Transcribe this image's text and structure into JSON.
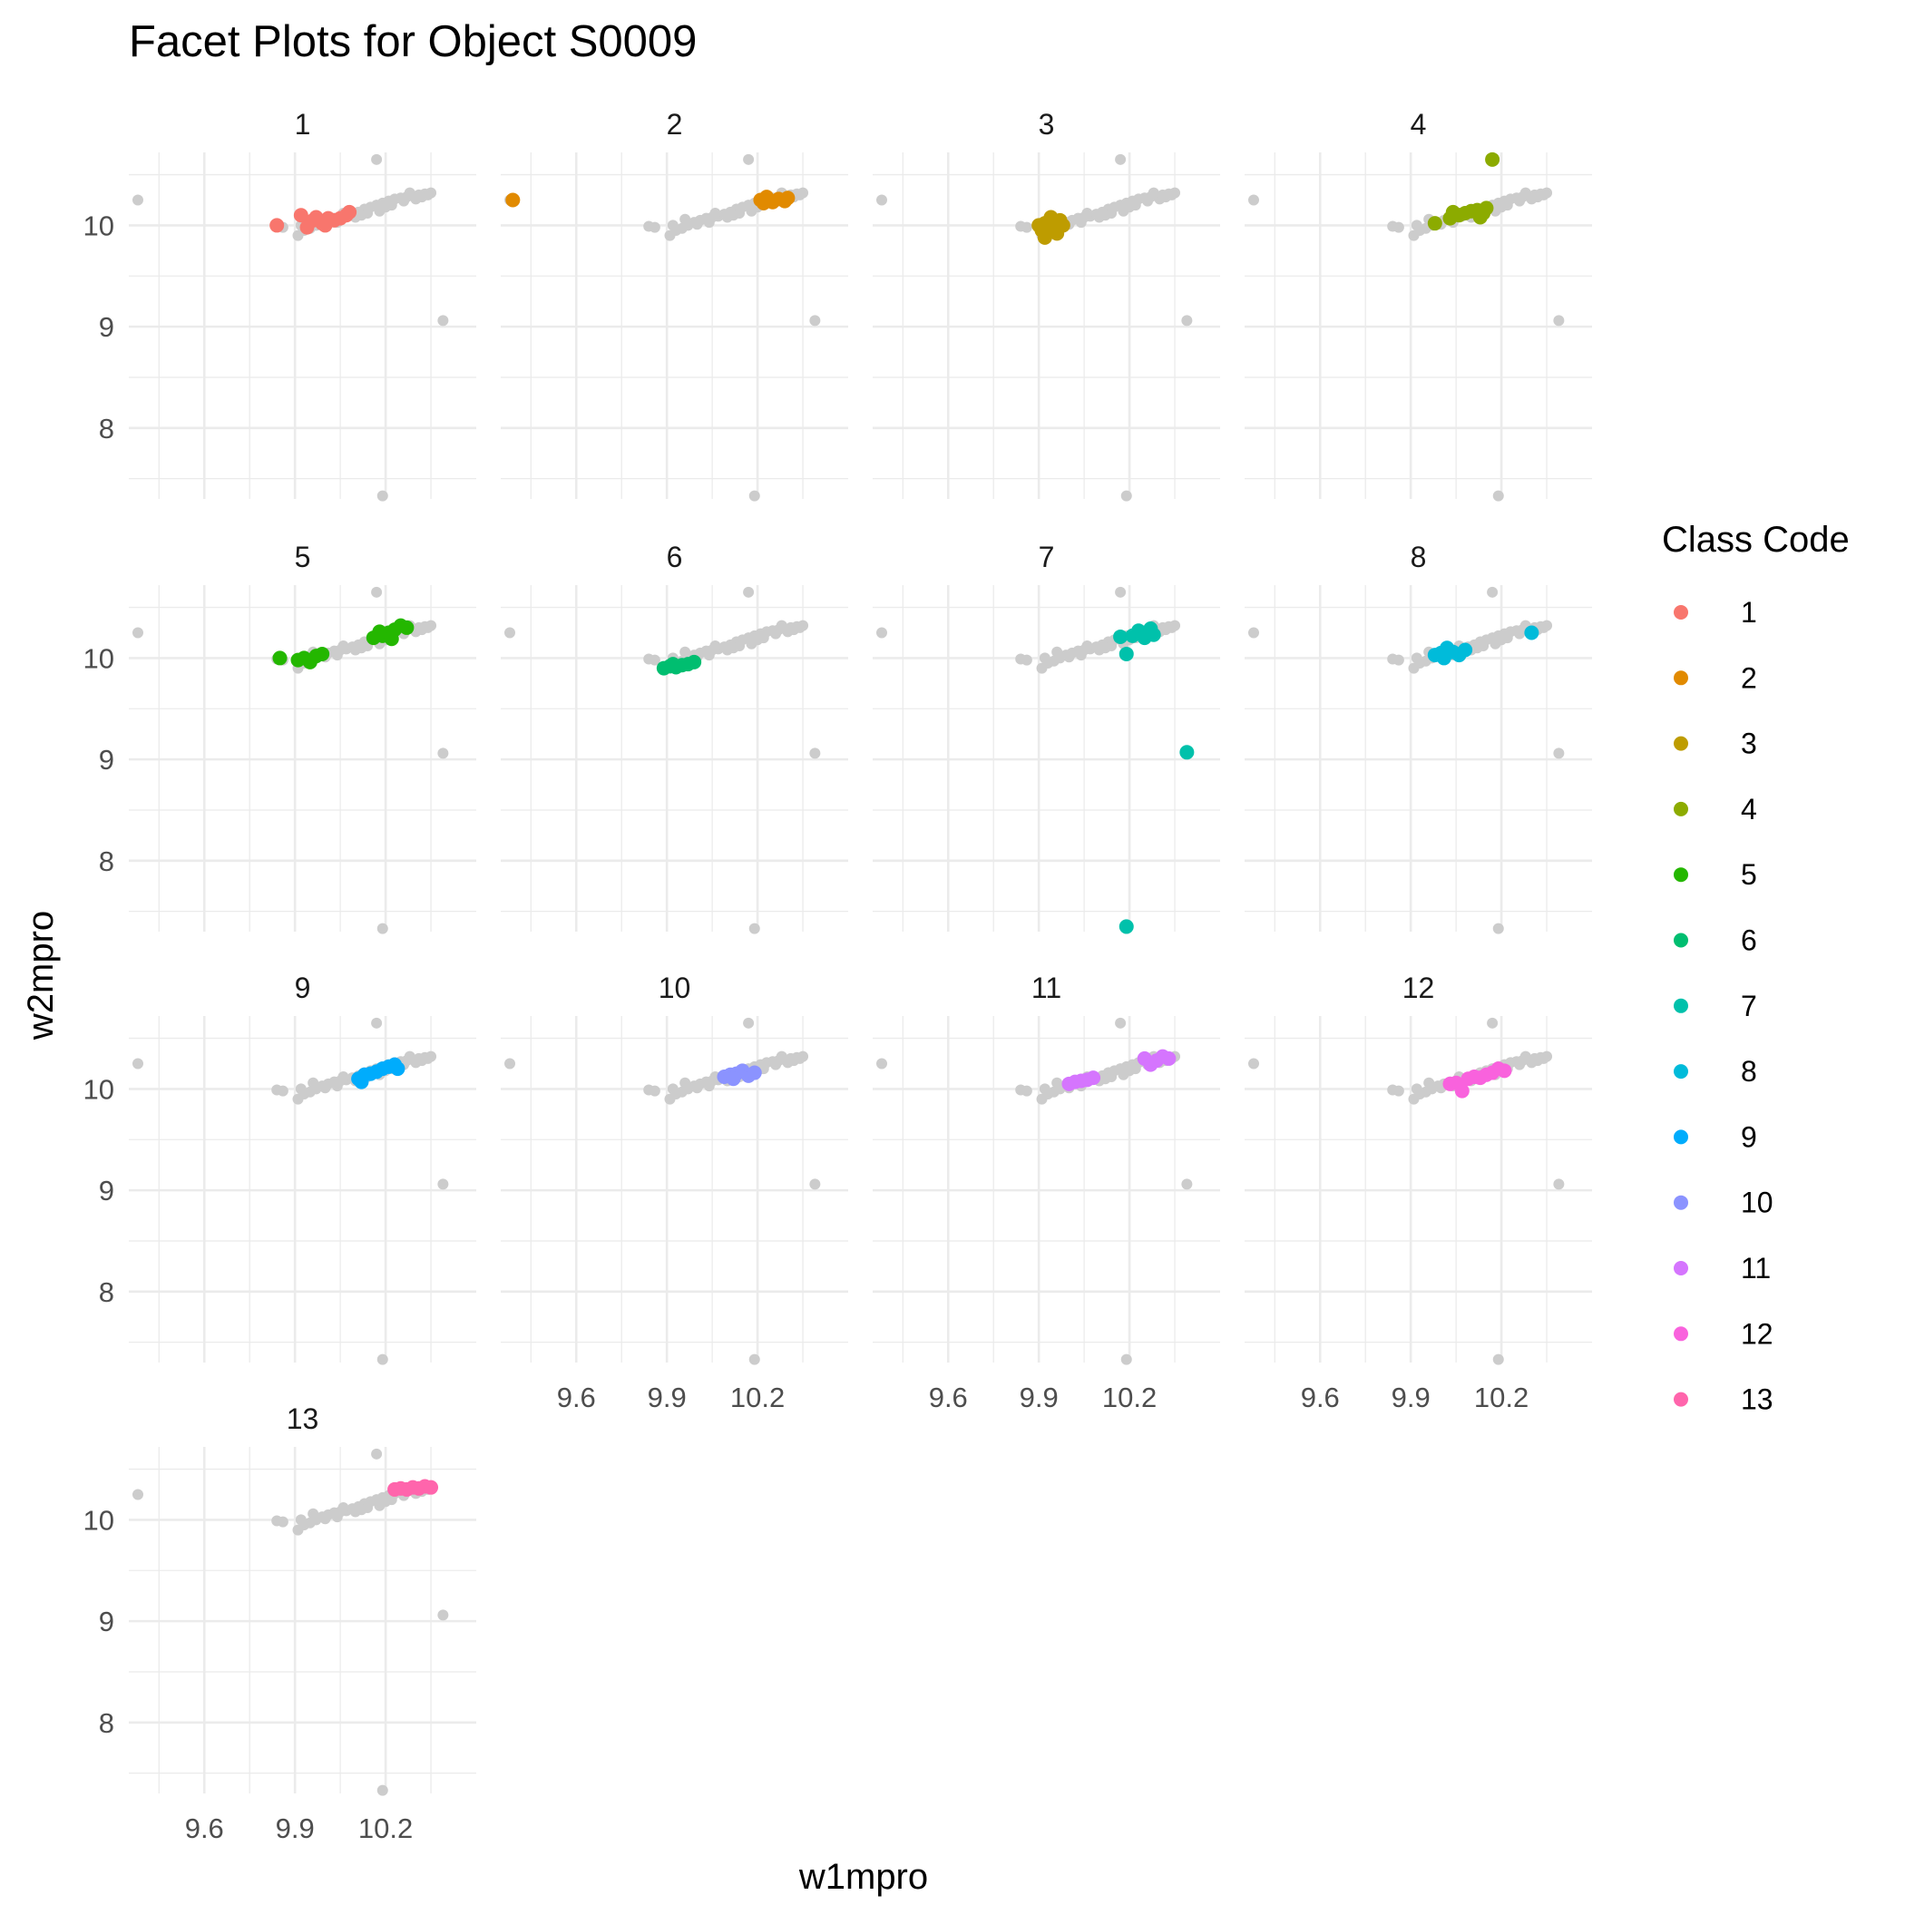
{
  "chart_data": {
    "type": "scatter",
    "title": "Facet Plots for Object S0009",
    "xlabel": "w1mpro",
    "ylabel": "w2mpro",
    "xlim": [
      9.35,
      10.5
    ],
    "ylim": [
      7.3,
      10.72
    ],
    "x_ticks": [
      "9.6",
      "9.9",
      "10.2"
    ],
    "y_ticks": [
      "8",
      "9",
      "10"
    ],
    "grid": true,
    "legend": {
      "title": "Class Code",
      "position": "right"
    },
    "facet_by": "Class Code",
    "background_color": "#cccccc",
    "background_points": [
      {
        "x": 9.38,
        "y": 10.25
      },
      {
        "x": 10.17,
        "y": 10.65
      },
      {
        "x": 10.39,
        "y": 9.06
      },
      {
        "x": 10.19,
        "y": 7.33
      },
      {
        "x": 9.84,
        "y": 9.99
      },
      {
        "x": 9.86,
        "y": 9.98
      },
      {
        "x": 9.91,
        "y": 9.9
      },
      {
        "x": 9.93,
        "y": 9.95
      },
      {
        "x": 9.95,
        "y": 9.97
      },
      {
        "x": 9.97,
        "y": 10.0
      },
      {
        "x": 9.99,
        "y": 10.03
      },
      {
        "x": 10.01,
        "y": 10.05
      },
      {
        "x": 10.03,
        "y": 10.07
      },
      {
        "x": 10.05,
        "y": 10.08
      },
      {
        "x": 10.07,
        "y": 10.09
      },
      {
        "x": 10.09,
        "y": 10.11
      },
      {
        "x": 10.11,
        "y": 10.13
      },
      {
        "x": 10.13,
        "y": 10.16
      },
      {
        "x": 10.15,
        "y": 10.18
      },
      {
        "x": 10.17,
        "y": 10.2
      },
      {
        "x": 10.19,
        "y": 10.22
      },
      {
        "x": 10.21,
        "y": 10.24
      },
      {
        "x": 10.23,
        "y": 10.26
      },
      {
        "x": 10.25,
        "y": 10.27
      },
      {
        "x": 10.27,
        "y": 10.28
      },
      {
        "x": 10.29,
        "y": 10.29
      },
      {
        "x": 10.31,
        "y": 10.3
      },
      {
        "x": 10.33,
        "y": 10.31
      },
      {
        "x": 10.34,
        "y": 10.3
      },
      {
        "x": 10.35,
        "y": 10.32
      },
      {
        "x": 9.96,
        "y": 10.06
      },
      {
        "x": 10.0,
        "y": 10.01
      },
      {
        "x": 10.04,
        "y": 10.03
      },
      {
        "x": 10.1,
        "y": 10.08
      },
      {
        "x": 10.14,
        "y": 10.12
      },
      {
        "x": 10.18,
        "y": 10.14
      },
      {
        "x": 10.22,
        "y": 10.2
      },
      {
        "x": 10.26,
        "y": 10.24
      },
      {
        "x": 10.3,
        "y": 10.26
      },
      {
        "x": 9.92,
        "y": 10.0
      },
      {
        "x": 10.06,
        "y": 10.12
      },
      {
        "x": 10.12,
        "y": 10.1
      },
      {
        "x": 10.2,
        "y": 10.18
      },
      {
        "x": 10.28,
        "y": 10.32
      },
      {
        "x": 10.32,
        "y": 10.28
      }
    ],
    "series": [
      {
        "name": "1",
        "color": "#F8766D",
        "points": [
          {
            "x": 9.84,
            "y": 10.0
          },
          {
            "x": 9.92,
            "y": 10.1
          },
          {
            "x": 9.94,
            "y": 9.98
          },
          {
            "x": 9.96,
            "y": 10.05
          },
          {
            "x": 9.99,
            "y": 10.02
          },
          {
            "x": 10.01,
            "y": 10.07
          },
          {
            "x": 10.03,
            "y": 10.05
          },
          {
            "x": 10.05,
            "y": 10.07
          },
          {
            "x": 10.07,
            "y": 10.1
          },
          {
            "x": 10.08,
            "y": 10.13
          },
          {
            "x": 10.0,
            "y": 10.0
          },
          {
            "x": 9.97,
            "y": 10.08
          }
        ]
      },
      {
        "name": "2",
        "color": "#E18A00",
        "points": [
          {
            "x": 9.39,
            "y": 10.25
          },
          {
            "x": 10.21,
            "y": 10.25
          },
          {
            "x": 10.23,
            "y": 10.28
          },
          {
            "x": 10.25,
            "y": 10.23
          },
          {
            "x": 10.27,
            "y": 10.26
          },
          {
            "x": 10.29,
            "y": 10.24
          },
          {
            "x": 10.3,
            "y": 10.27
          },
          {
            "x": 10.22,
            "y": 10.22
          }
        ]
      },
      {
        "name": "3",
        "color": "#BE9C00",
        "points": [
          {
            "x": 9.9,
            "y": 10.0
          },
          {
            "x": 9.91,
            "y": 9.95
          },
          {
            "x": 9.92,
            "y": 9.88
          },
          {
            "x": 9.93,
            "y": 10.03
          },
          {
            "x": 9.94,
            "y": 10.08
          },
          {
            "x": 9.95,
            "y": 9.97
          },
          {
            "x": 9.97,
            "y": 10.05
          },
          {
            "x": 9.98,
            "y": 10.0
          },
          {
            "x": 9.92,
            "y": 10.02
          },
          {
            "x": 9.96,
            "y": 9.92
          }
        ]
      },
      {
        "name": "4",
        "color": "#8CAB00",
        "points": [
          {
            "x": 9.98,
            "y": 10.02
          },
          {
            "x": 10.03,
            "y": 10.07
          },
          {
            "x": 10.04,
            "y": 10.13
          },
          {
            "x": 10.06,
            "y": 10.1
          },
          {
            "x": 10.08,
            "y": 10.12
          },
          {
            "x": 10.1,
            "y": 10.14
          },
          {
            "x": 10.12,
            "y": 10.15
          },
          {
            "x": 10.14,
            "y": 10.12
          },
          {
            "x": 10.15,
            "y": 10.17
          },
          {
            "x": 10.13,
            "y": 10.08
          },
          {
            "x": 10.17,
            "y": 10.65
          }
        ]
      },
      {
        "name": "5",
        "color": "#24B700",
        "points": [
          {
            "x": 9.85,
            "y": 10.0
          },
          {
            "x": 9.91,
            "y": 9.98
          },
          {
            "x": 9.93,
            "y": 10.0
          },
          {
            "x": 9.95,
            "y": 9.96
          },
          {
            "x": 9.97,
            "y": 10.02
          },
          {
            "x": 9.99,
            "y": 10.04
          },
          {
            "x": 10.16,
            "y": 10.2
          },
          {
            "x": 10.19,
            "y": 10.22
          },
          {
            "x": 10.21,
            "y": 10.25
          },
          {
            "x": 10.23,
            "y": 10.28
          },
          {
            "x": 10.25,
            "y": 10.32
          },
          {
            "x": 10.27,
            "y": 10.3
          },
          {
            "x": 10.18,
            "y": 10.26
          },
          {
            "x": 10.22,
            "y": 10.19
          }
        ]
      },
      {
        "name": "6",
        "color": "#00BE70",
        "points": [
          {
            "x": 9.89,
            "y": 9.9
          },
          {
            "x": 9.91,
            "y": 9.92
          },
          {
            "x": 9.93,
            "y": 9.91
          },
          {
            "x": 9.95,
            "y": 9.93
          },
          {
            "x": 9.97,
            "y": 9.94
          },
          {
            "x": 9.99,
            "y": 9.96
          },
          {
            "x": 9.92,
            "y": 9.94
          }
        ]
      },
      {
        "name": "7",
        "color": "#00C1AB",
        "points": [
          {
            "x": 10.17,
            "y": 10.21
          },
          {
            "x": 10.19,
            "y": 10.04
          },
          {
            "x": 10.21,
            "y": 10.22
          },
          {
            "x": 10.23,
            "y": 10.27
          },
          {
            "x": 10.25,
            "y": 10.2
          },
          {
            "x": 10.27,
            "y": 10.29
          },
          {
            "x": 10.28,
            "y": 10.23
          },
          {
            "x": 10.39,
            "y": 9.07
          },
          {
            "x": 10.19,
            "y": 7.35
          }
        ]
      },
      {
        "name": "8",
        "color": "#00BBDA",
        "points": [
          {
            "x": 9.98,
            "y": 10.03
          },
          {
            "x": 10.0,
            "y": 10.05
          },
          {
            "x": 10.02,
            "y": 10.1
          },
          {
            "x": 10.04,
            "y": 10.06
          },
          {
            "x": 10.06,
            "y": 10.03
          },
          {
            "x": 10.08,
            "y": 10.08
          },
          {
            "x": 10.01,
            "y": 10.0
          },
          {
            "x": 10.3,
            "y": 10.25
          }
        ]
      },
      {
        "name": "9",
        "color": "#00ACFC",
        "points": [
          {
            "x": 10.11,
            "y": 10.1
          },
          {
            "x": 10.13,
            "y": 10.14
          },
          {
            "x": 10.15,
            "y": 10.15
          },
          {
            "x": 10.17,
            "y": 10.17
          },
          {
            "x": 10.19,
            "y": 10.2
          },
          {
            "x": 10.21,
            "y": 10.22
          },
          {
            "x": 10.23,
            "y": 10.24
          },
          {
            "x": 10.24,
            "y": 10.2
          },
          {
            "x": 10.12,
            "y": 10.07
          }
        ]
      },
      {
        "name": "10",
        "color": "#8B93FF",
        "points": [
          {
            "x": 10.09,
            "y": 10.12
          },
          {
            "x": 10.11,
            "y": 10.14
          },
          {
            "x": 10.13,
            "y": 10.15
          },
          {
            "x": 10.15,
            "y": 10.18
          },
          {
            "x": 10.17,
            "y": 10.13
          },
          {
            "x": 10.19,
            "y": 10.16
          },
          {
            "x": 10.12,
            "y": 10.1
          }
        ]
      },
      {
        "name": "11",
        "color": "#D575FE",
        "points": [
          {
            "x": 10.0,
            "y": 10.05
          },
          {
            "x": 10.02,
            "y": 10.07
          },
          {
            "x": 10.04,
            "y": 10.08
          },
          {
            "x": 10.06,
            "y": 10.09
          },
          {
            "x": 10.08,
            "y": 10.11
          },
          {
            "x": 10.25,
            "y": 10.3
          },
          {
            "x": 10.27,
            "y": 10.24
          },
          {
            "x": 10.29,
            "y": 10.28
          },
          {
            "x": 10.31,
            "y": 10.32
          },
          {
            "x": 10.33,
            "y": 10.3
          }
        ]
      },
      {
        "name": "12",
        "color": "#F962DD",
        "points": [
          {
            "x": 10.03,
            "y": 10.05
          },
          {
            "x": 10.05,
            "y": 10.06
          },
          {
            "x": 10.07,
            "y": 9.98
          },
          {
            "x": 10.09,
            "y": 10.1
          },
          {
            "x": 10.11,
            "y": 10.12
          },
          {
            "x": 10.13,
            "y": 10.11
          },
          {
            "x": 10.15,
            "y": 10.14
          },
          {
            "x": 10.17,
            "y": 10.16
          },
          {
            "x": 10.19,
            "y": 10.2
          },
          {
            "x": 10.21,
            "y": 10.18
          }
        ]
      },
      {
        "name": "13",
        "color": "#FF65AC",
        "points": [
          {
            "x": 10.23,
            "y": 10.3
          },
          {
            "x": 10.25,
            "y": 10.31
          },
          {
            "x": 10.27,
            "y": 10.3
          },
          {
            "x": 10.29,
            "y": 10.32
          },
          {
            "x": 10.31,
            "y": 10.31
          },
          {
            "x": 10.33,
            "y": 10.33
          },
          {
            "x": 10.35,
            "y": 10.32
          }
        ]
      }
    ]
  }
}
